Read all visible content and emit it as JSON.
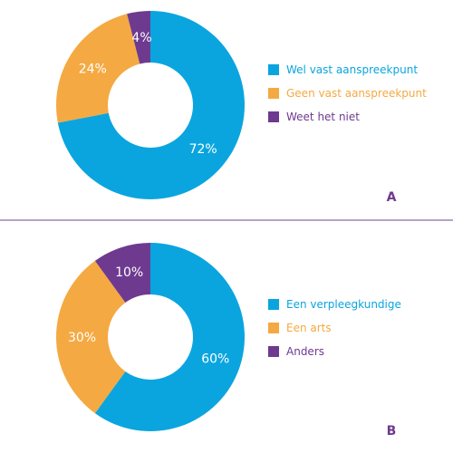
{
  "colors": {
    "blue": "#0aa5df",
    "orange": "#f5a942",
    "purple": "#6e3a8f",
    "divider": "#8e6aa8"
  },
  "chart_data": [
    {
      "type": "pie",
      "panel_label": "A",
      "categories": [
        "Wel vast aanspreekpunt",
        "Geen vast aanspreekpunt",
        "Weet het niet"
      ],
      "values": [
        72,
        24,
        4
      ],
      "value_labels": [
        "72%",
        "24%",
        "4%"
      ],
      "colors": [
        "#0aa5df",
        "#f5a942",
        "#6e3a8f"
      ],
      "legend_position": "right"
    },
    {
      "type": "pie",
      "panel_label": "B",
      "categories": [
        "Een verpleegkundige",
        "Een arts",
        "Anders"
      ],
      "values": [
        60,
        30,
        10
      ],
      "value_labels": [
        "60%",
        "30%",
        "10%"
      ],
      "colors": [
        "#0aa5df",
        "#f5a942",
        "#6e3a8f"
      ],
      "legend_position": "right"
    }
  ]
}
